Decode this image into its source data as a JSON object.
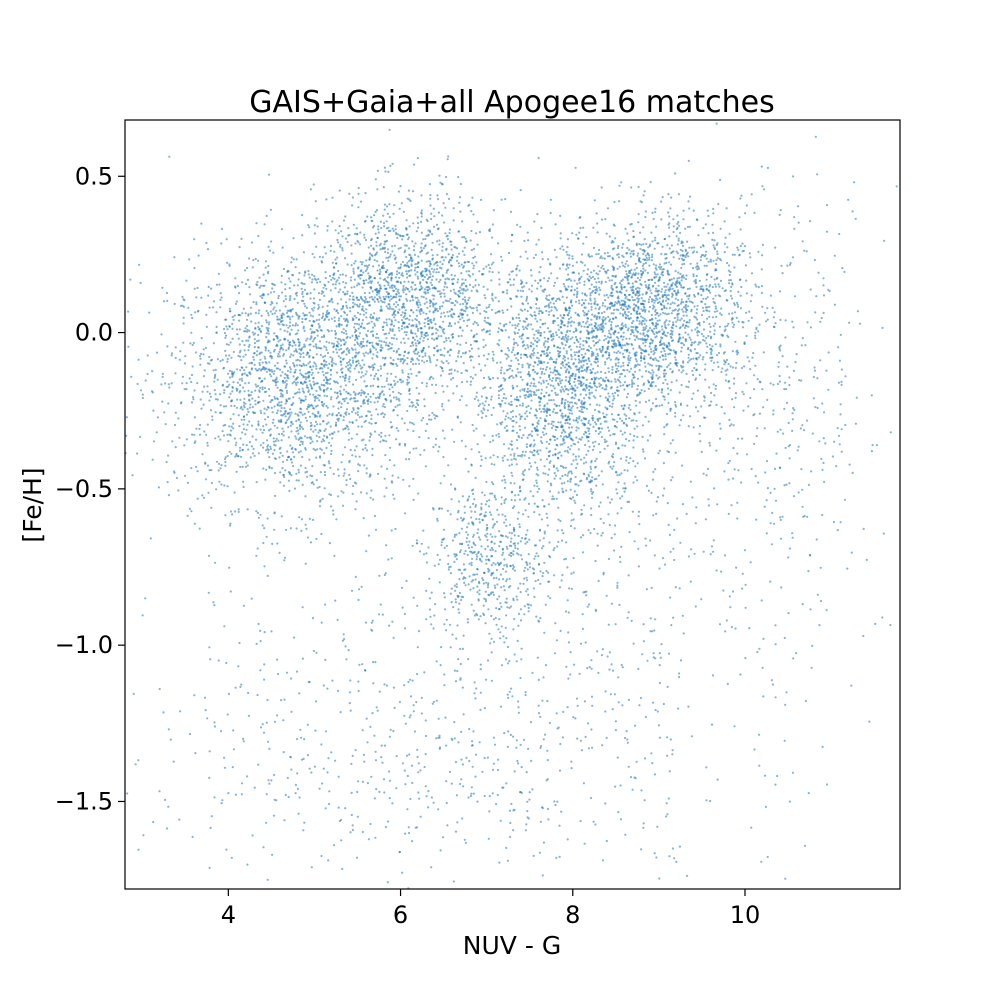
{
  "chart_data": {
    "type": "scatter",
    "title": "GAIS+Gaia+all Apogee16 matches",
    "xlabel": "NUV - G",
    "ylabel": "[Fe/H]",
    "xlim": [
      2.8,
      11.8
    ],
    "ylim": [
      -1.78,
      0.68
    ],
    "x_ticks": [
      4,
      6,
      8,
      10
    ],
    "x_tick_labels": [
      "4",
      "6",
      "8",
      "10"
    ],
    "y_ticks": [
      0.5,
      0.0,
      -0.5,
      -1.0,
      -1.5
    ],
    "y_tick_labels": [
      "0.5",
      "0.0",
      "−0.5",
      "−1.0",
      "−1.5"
    ],
    "grid": false,
    "legend": "none",
    "marker_color": "#1f77b4",
    "marker_alpha": 0.55,
    "point_density_clusters": [
      {
        "x_center": 4.8,
        "y_center": -0.15,
        "x_spread": 0.75,
        "y_spread": 0.2,
        "weight": 0.24
      },
      {
        "x_center": 6.1,
        "y_center": 0.12,
        "x_spread": 0.55,
        "y_spread": 0.16,
        "weight": 0.16
      },
      {
        "x_center": 7.9,
        "y_center": -0.18,
        "x_spread": 0.55,
        "y_spread": 0.2,
        "weight": 0.2
      },
      {
        "x_center": 8.9,
        "y_center": 0.08,
        "x_spread": 0.55,
        "y_spread": 0.15,
        "weight": 0.18
      },
      {
        "x_center": 7.0,
        "y_center": -0.72,
        "x_spread": 0.35,
        "y_spread": 0.12,
        "weight": 0.05
      },
      {
        "x_center": 6.6,
        "y_center": -1.1,
        "x_spread": 1.5,
        "y_spread": 0.35,
        "weight": 0.06
      },
      {
        "x_center": 10.2,
        "y_center": -0.2,
        "x_spread": 0.8,
        "y_spread": 0.35,
        "weight": 0.05
      },
      {
        "x_center": 5.5,
        "y_center": -1.45,
        "x_spread": 1.6,
        "y_spread": 0.2,
        "weight": 0.03
      },
      {
        "x_center": 9.0,
        "y_center": -0.95,
        "x_spread": 1.3,
        "y_spread": 0.4,
        "weight": 0.03
      }
    ]
  }
}
